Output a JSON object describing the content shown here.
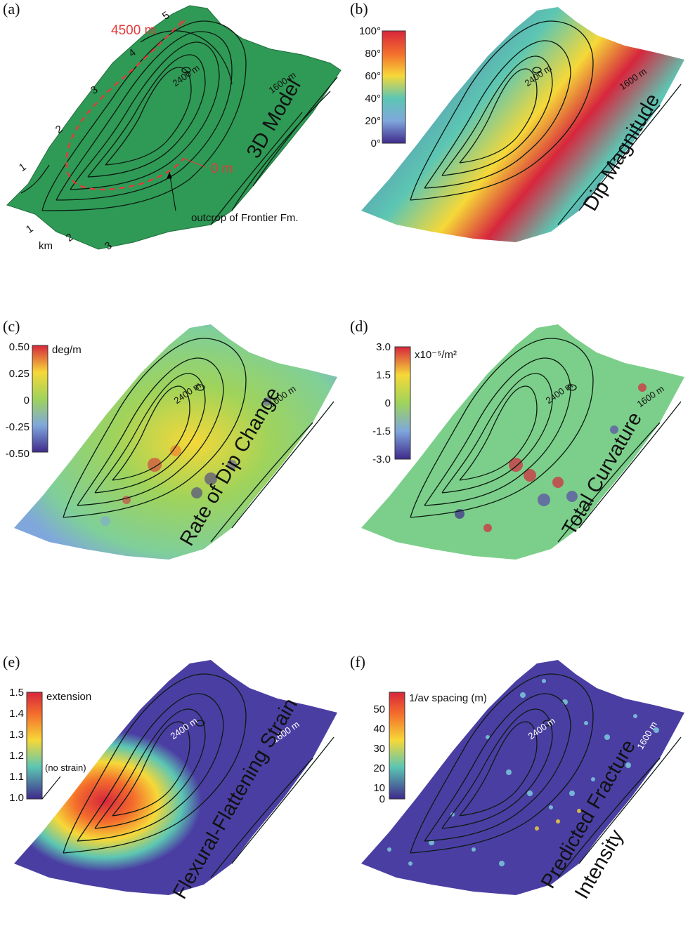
{
  "panels": [
    {
      "id": "a",
      "label": "(a)",
      "title": "3D Model",
      "surface_color": "#2f9a55",
      "contour_labels": [
        "2400 m",
        "1600 m"
      ],
      "annotations": {
        "top": "4500 m",
        "bottom": "0 m",
        "outcrop": "outcrop of Frontier Fm.",
        "unit": "km"
      },
      "scale_ticks_left": [
        "1",
        "2",
        "3",
        "4",
        "5"
      ],
      "scale_ticks_bottom": [
        "1",
        "2",
        "3"
      ]
    },
    {
      "id": "b",
      "label": "(b)",
      "title": "Dip Magnitude",
      "contour_labels": [
        "2400 m",
        "1600 m"
      ],
      "colorbar_ticks": [
        "100°",
        "80°",
        "60°",
        "40°",
        "20°",
        "0°"
      ]
    },
    {
      "id": "c",
      "label": "(c)",
      "title": "Rate of Dip Change",
      "contour_labels": [
        "2400 m",
        "1600 m"
      ],
      "colorbar_unit": "deg/m",
      "colorbar_ticks": [
        "0.50",
        "0.25",
        "0",
        "-0.25",
        "-0.50"
      ]
    },
    {
      "id": "d",
      "label": "(d)",
      "title": "Total Curvature",
      "contour_labels": [
        "2400 m",
        "1600 m"
      ],
      "colorbar_unit": "x10⁻⁵/m²",
      "colorbar_ticks": [
        "3.0",
        "1.5",
        "0",
        "-1.5",
        "-3.0"
      ]
    },
    {
      "id": "e",
      "label": "(e)",
      "title": "Flexural-Flattening Strain",
      "contour_labels": [
        "2400 m",
        "1600 m"
      ],
      "colorbar_unit": "extension",
      "colorbar_note": "(no strain)",
      "colorbar_ticks": [
        "1.5",
        "1.4",
        "1.3",
        "1.2",
        "1.1",
        "1.0"
      ]
    },
    {
      "id": "f",
      "label": "(f)",
      "title_lines": [
        "Predicted Fracture",
        "Intensity"
      ],
      "contour_labels": [
        "2400 m",
        "1600 m"
      ],
      "colorbar_unit": "1/av spacing (m)",
      "colorbar_ticks": [
        "50",
        "40",
        "30",
        "20",
        "10",
        "0"
      ]
    }
  ],
  "colors": {
    "rainbow": [
      "#d7263d",
      "#f46d2c",
      "#f6d838",
      "#9fd35b",
      "#5cc6b3",
      "#7fa7dc",
      "#5b4aa8",
      "#3f2a8c"
    ],
    "violet": "#4b3ea3",
    "green_field": "#7ccf8a",
    "red_dashed": "#e33b3b"
  }
}
